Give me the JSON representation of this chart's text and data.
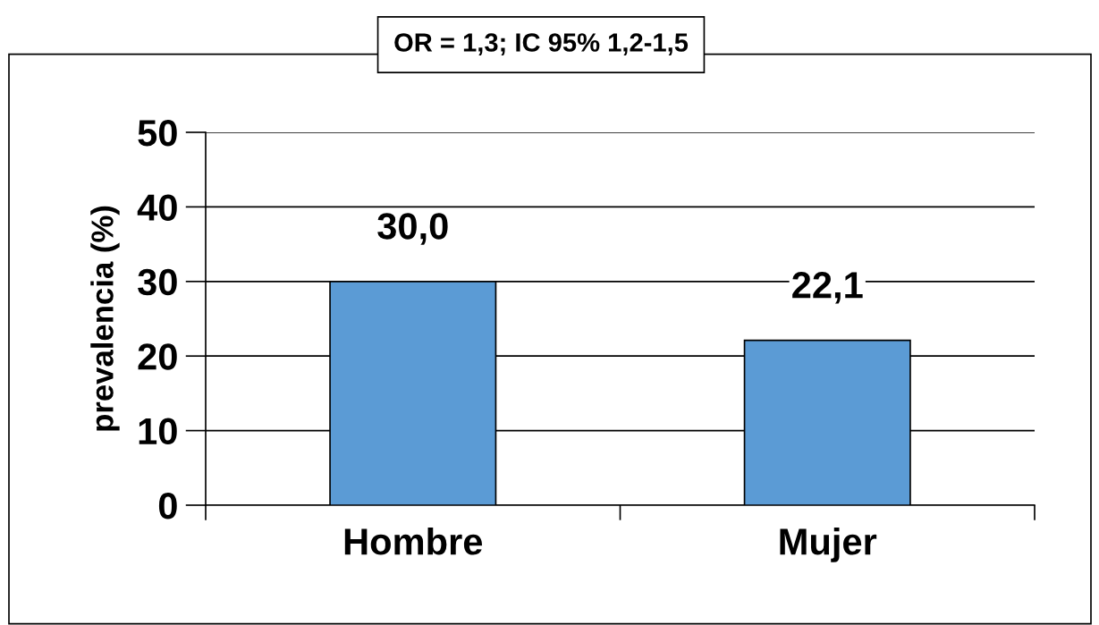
{
  "chart_data": {
    "type": "bar",
    "title": "OR = 1,3; IC 95% 1,2-1,5",
    "ylabel": "prevalencia (%)",
    "categories": [
      "Hombre",
      "Mujer"
    ],
    "values": [
      30.0,
      22.1
    ],
    "value_labels": [
      "30,0",
      "22,1"
    ],
    "color": "#5b9bd5",
    "ylim": [
      0,
      50
    ],
    "yticks": [
      0,
      10,
      20,
      30,
      40,
      50
    ],
    "grid": "y"
  }
}
